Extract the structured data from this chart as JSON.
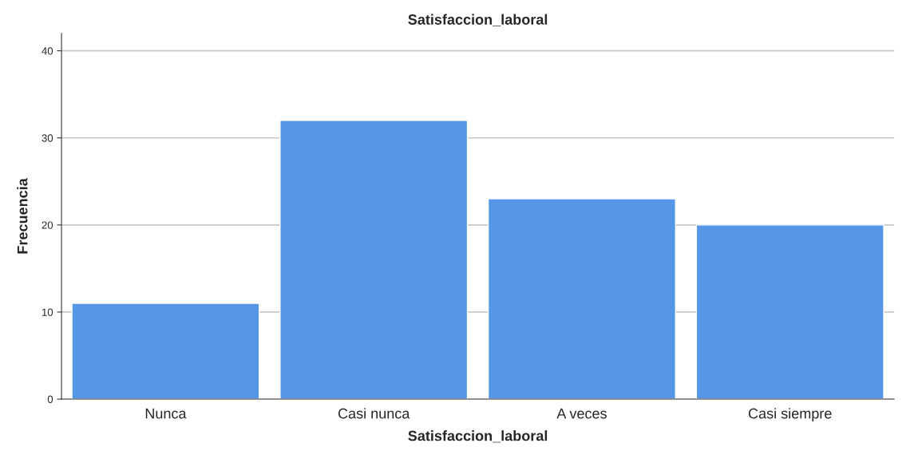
{
  "chart_data": {
    "type": "bar",
    "title": "Satisfaccion_laboral",
    "xlabel": "Satisfaccion_laboral",
    "ylabel": "Frecuencia",
    "categories": [
      "Nunca",
      "Casi nunca",
      "A veces",
      "Casi siempre"
    ],
    "values": [
      11,
      32,
      23,
      20
    ],
    "color": "#5596e6",
    "ylim": [
      0,
      42
    ],
    "yticks": [
      0,
      10,
      20,
      30,
      40
    ],
    "grid": "y",
    "legend": false
  }
}
